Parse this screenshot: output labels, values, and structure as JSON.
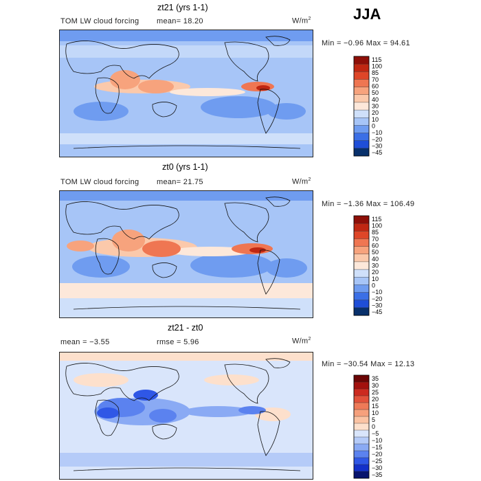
{
  "season": "JJA",
  "palettes": {
    "abs": [
      "#08306b",
      "#1f4ed8",
      "#3b6fe6",
      "#6f9cf0",
      "#a7c5f7",
      "#cfe0fa",
      "#fde8da",
      "#fbc9ab",
      "#f7a37d",
      "#ef7652",
      "#de4628",
      "#c02712",
      "#8e0f08"
    ],
    "diff": [
      "#08146e",
      "#1330c9",
      "#2f57e6",
      "#5b82ef",
      "#8aaaf4",
      "#b5cbf8",
      "#d9e5fb",
      "#fde0cc",
      "#fbc3a3",
      "#f6a07c",
      "#ee7a58",
      "#e2513a",
      "#cc2a1f",
      "#a3110e",
      "#6b0505"
    ]
  },
  "panels": [
    {
      "title": "zt21 (yrs 1-1)",
      "subtitle_left": "TOM LW cloud forcing",
      "mean_text": "mean=  18.20",
      "units_text": "W/m",
      "units_sup": "2",
      "minmax_text": "Min =  −0.96 Max =  94.61",
      "colorbar": {
        "palette": "abs",
        "labels": [
          "115",
          "100",
          "85",
          "70",
          "60",
          "50",
          "40",
          "30",
          "20",
          "10",
          "0",
          "−10",
          "−20",
          "−30",
          "−45"
        ]
      }
    },
    {
      "title": "zt0 (yrs 1-1)",
      "subtitle_left": "TOM LW cloud forcing",
      "mean_text": "mean=  21.75",
      "units_text": "W/m",
      "units_sup": "2",
      "minmax_text": "Min =  −1.36 Max = 106.49",
      "colorbar": {
        "palette": "abs",
        "labels": [
          "115",
          "100",
          "85",
          "70",
          "60",
          "50",
          "40",
          "30",
          "20",
          "10",
          "0",
          "−10",
          "−20",
          "−30",
          "−45"
        ]
      }
    },
    {
      "title": "zt21 - zt0",
      "subtitle_left": "mean =   −3.55",
      "mean_text": "rmse =    5.96",
      "units_text": "W/m",
      "units_sup": "2",
      "minmax_text": "Min = −30.54 Max =  12.13",
      "colorbar": {
        "palette": "diff",
        "labels": [
          "35",
          "30",
          "25",
          "20",
          "15",
          "10",
          "5",
          "0",
          "−5",
          "−10",
          "−15",
          "−20",
          "−25",
          "−30",
          "−35"
        ]
      }
    }
  ]
}
